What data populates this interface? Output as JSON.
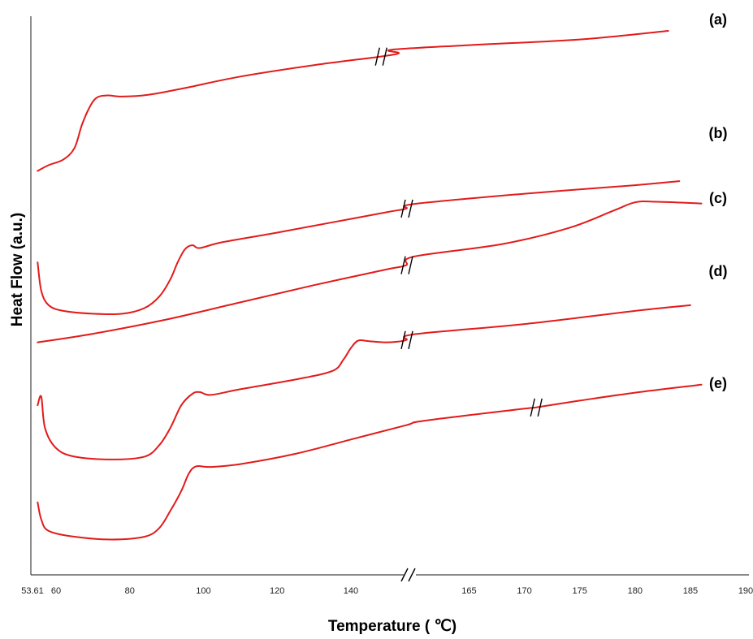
{
  "chart_data": {
    "type": "line",
    "title": "",
    "xlabel": "Temperature ( ℃)",
    "ylabel": "Heat Flow (a.u.)",
    "x_axis_segments": [
      {
        "range": [
          53.61,
          155
        ],
        "ticks": [
          "53.61",
          "60",
          "80",
          "100",
          "120",
          "140"
        ]
      },
      {
        "range": [
          161,
          190
        ],
        "ticks": [
          "165",
          "170",
          "175",
          "180",
          "185",
          "190"
        ]
      }
    ],
    "axis_break": true,
    "grid": false,
    "legend": "none",
    "line_color": "#e21b1b",
    "y_range": [
      0,
      100
    ],
    "series": [
      {
        "label": "(a)",
        "points": [
          [
            55,
            77
          ],
          [
            58,
            78
          ],
          [
            62,
            79
          ],
          [
            65,
            81
          ],
          [
            67,
            85
          ],
          [
            69,
            88
          ],
          [
            71,
            89.8
          ],
          [
            74,
            90.2
          ],
          [
            78,
            90
          ],
          [
            85,
            90.3
          ],
          [
            95,
            91.5
          ],
          [
            110,
            93.5
          ],
          [
            130,
            95.5
          ],
          [
            148,
            97
          ],
          [
            153,
            97.6
          ],
          [
            158,
            98.2
          ],
          [
            165,
            99
          ],
          [
            175,
            100
          ],
          [
            183,
            101.5
          ]
        ],
        "break_at_point": 13
      },
      {
        "label": "(b)",
        "points": [
          [
            55,
            61
          ],
          [
            56,
            56
          ],
          [
            58,
            53.5
          ],
          [
            62,
            52.5
          ],
          [
            70,
            52
          ],
          [
            78,
            52
          ],
          [
            84,
            53
          ],
          [
            88,
            55
          ],
          [
            91,
            58
          ],
          [
            93,
            61
          ],
          [
            95,
            63.3
          ],
          [
            97,
            64
          ],
          [
            99,
            63.5
          ],
          [
            105,
            64.5
          ],
          [
            120,
            66.2
          ],
          [
            135,
            68
          ],
          [
            150,
            69.8
          ],
          [
            155,
            70.4
          ],
          [
            160,
            71.2
          ],
          [
            170,
            73
          ],
          [
            180,
            74.5
          ],
          [
            184,
            75.2
          ]
        ],
        "break_at_point": 17
      },
      {
        "label": "(c)",
        "points": [
          [
            55,
            47
          ],
          [
            70,
            48.5
          ],
          [
            90,
            51
          ],
          [
            110,
            54
          ],
          [
            130,
            57
          ],
          [
            150,
            59.8
          ],
          [
            155,
            60.5
          ],
          [
            160,
            62
          ],
          [
            168,
            64.2
          ],
          [
            174,
            67
          ],
          [
            178,
            70
          ],
          [
            180,
            71.5
          ],
          [
            182,
            71.6
          ],
          [
            186,
            71.3
          ]
        ],
        "break_at_point": 6
      },
      {
        "label": "(d)",
        "points": [
          [
            55,
            36
          ],
          [
            56,
            37.5
          ],
          [
            57,
            32
          ],
          [
            60,
            28.5
          ],
          [
            65,
            27
          ],
          [
            75,
            26.5
          ],
          [
            84,
            27
          ],
          [
            88,
            29
          ],
          [
            91,
            32
          ],
          [
            94,
            36
          ],
          [
            97,
            38
          ],
          [
            99,
            38.3
          ],
          [
            102,
            37.8
          ],
          [
            110,
            38.8
          ],
          [
            125,
            40.5
          ],
          [
            135,
            42
          ],
          [
            138,
            44
          ],
          [
            140,
            46
          ],
          [
            142,
            47.3
          ],
          [
            145,
            47.2
          ],
          [
            150,
            47
          ],
          [
            155,
            47.4
          ],
          [
            160,
            48.4
          ],
          [
            170,
            50.2
          ],
          [
            180,
            52.5
          ],
          [
            185,
            53.5
          ]
        ],
        "break_at_point": 21
      },
      {
        "label": "(e)",
        "points": [
          [
            55,
            19
          ],
          [
            56,
            16
          ],
          [
            58,
            14
          ],
          [
            65,
            13
          ],
          [
            75,
            12.5
          ],
          [
            84,
            13
          ],
          [
            88,
            14.5
          ],
          [
            91,
            17.5
          ],
          [
            94,
            21
          ],
          [
            96,
            24
          ],
          [
            98,
            25.3
          ],
          [
            102,
            25.2
          ],
          [
            110,
            25.7
          ],
          [
            125,
            27.5
          ],
          [
            140,
            30
          ],
          [
            155,
            32.5
          ],
          [
            161,
            33.3
          ],
          [
            170,
            35.4
          ],
          [
            171,
            35.6
          ],
          [
            175,
            36.8
          ],
          [
            180,
            38.2
          ],
          [
            186,
            39.6
          ]
        ],
        "break_at_point": 18
      }
    ]
  }
}
